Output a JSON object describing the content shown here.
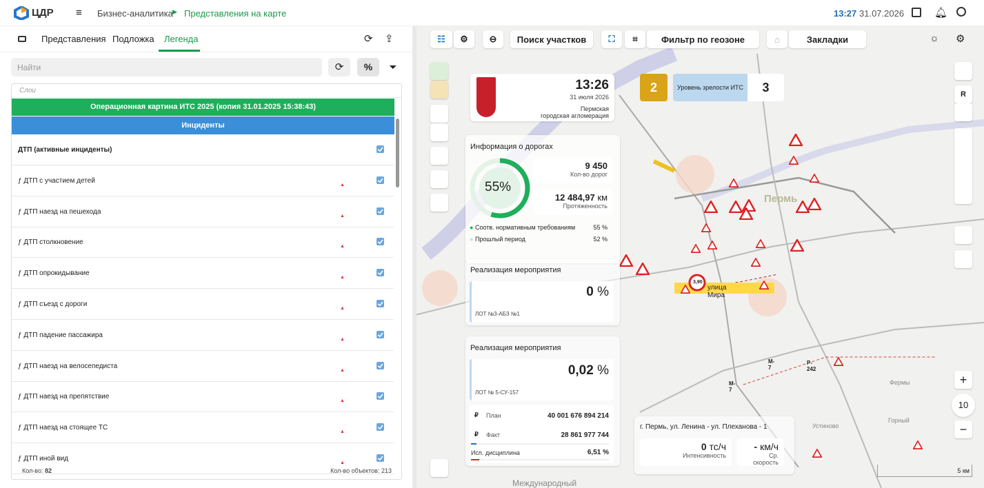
{
  "header": {
    "logo": "ЦДР",
    "breadcrumb": [
      "Бизнес-аналитика",
      "Представления на карте"
    ],
    "time": "13:27",
    "date": "31.07.2026"
  },
  "left_panel": {
    "tabs": [
      "Представления",
      "Подложка",
      "Легенда"
    ],
    "search_placeholder": "Найти",
    "percent_button": "%",
    "layers_column": "Слои",
    "group": "Операционная картина ИТС 2025 (копия 31.01.2025 15:38:43)",
    "subgroup": "Инциденты",
    "layers": [
      "ДТП (активные инциденты)",
      "ƒ ДТП с участием детей",
      "ƒ ДТП наезд на пешехода",
      "ƒ ДТП столкновение",
      "ƒ ДТП опрокидывание",
      "ƒ ДТП съезд с дороги",
      "ƒ ДТП падение пассажира",
      "ƒ ДТП наезд на велосепедиста",
      "ƒ ДТП наезд на препятствие",
      "ƒ ДТП наезд на стоящее ТС",
      "ƒ ДТП иной вид"
    ],
    "count_label": "Кол-во:",
    "count": 82,
    "objects_label": "Кол-во объектов:",
    "objects": 213
  },
  "map_toolbar": {
    "search_sections": "Поиск участков",
    "geozone_filter": "Фильтр по геозоне",
    "bookmarks": "Закладки"
  },
  "city_card": {
    "time": "13:26",
    "date": "31 июля 2026",
    "region": [
      "Пермская",
      "городская агломерация"
    ]
  },
  "maturity": {
    "level": 2,
    "label": "Уровень зрелости ИТС",
    "target": 3
  },
  "roads": {
    "title": "Информация о дорогах",
    "percent": 55,
    "percent_unit": "%",
    "road_count": "9 450",
    "road_count_label": "Кол-во дорог",
    "length": "12 484,97",
    "length_unit": "км",
    "length_label": "Протяженность",
    "legend": [
      {
        "label": "Соотв. нормативным требованиям",
        "value": "55 %"
      },
      {
        "label": "Прошлый период",
        "value": "52 %"
      }
    ]
  },
  "events": [
    {
      "title": "Реализация мероприятия",
      "value": "0",
      "unit": "%",
      "lot": "ЛОТ №3-АБЗ №1"
    },
    {
      "title": "Реализация мероприятия",
      "value": "0,02",
      "unit": "%",
      "lot": "ЛОТ № 5-СУ-157",
      "currency": "₽",
      "plan_label": "План",
      "plan": "40 001 676 894 214",
      "fact_label": "Факт",
      "fact": "28 861 977 744",
      "discipline_label": "Исп. дисциплина",
      "discipline": "6,51 %"
    }
  ],
  "traffic": {
    "location": "г. Пермь, ул. Ленина - ул. Плеханова - 1",
    "intensity": "0",
    "intensity_unit": "тс/ч",
    "intensity_label": "Интенсивность",
    "speed": "-",
    "speed_unit": "км/ч",
    "speed_label": "Ср. скорость"
  },
  "map": {
    "labels": [
      "Пермь",
      "улица Мира",
      "3,90",
      "M-7",
      "M-7",
      "P-242",
      "Устиново",
      "Горный",
      "Фермы",
      "Международный"
    ],
    "layer_letter": "R",
    "zoom": "10",
    "scale": "5 км"
  }
}
